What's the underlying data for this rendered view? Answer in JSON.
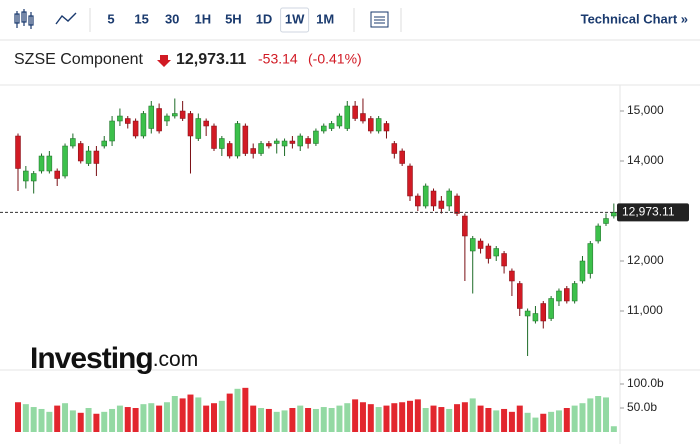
{
  "toolbar": {
    "intervals": [
      "5",
      "15",
      "30",
      "1H",
      "5H",
      "1D",
      "1W",
      "1M"
    ],
    "technical_chart": "Technical Chart »"
  },
  "header": {
    "name": "SZSE Component",
    "change": "-53.14",
    "change_percent": "(-0.41%)"
  },
  "watermark": {
    "brand": "Investing",
    "suffix": ".com"
  },
  "chart_data": {
    "type": "candlestick",
    "up_color": "#3cc04b",
    "down_color": "#d11a24",
    "volume_up_color": "#93d9a3",
    "volume_down_color": "#e2262e",
    "open": [
      14500,
      13600,
      13600,
      13800,
      13800,
      13800,
      13700,
      14300,
      14350,
      13950,
      14200,
      14300,
      14400,
      14800,
      14850,
      14800,
      14500,
      14650,
      15050,
      14800,
      14900,
      15000,
      14950,
      14450,
      14800,
      14700,
      14250,
      14350,
      14100,
      14700,
      14250,
      14150,
      14350,
      14350,
      14300,
      14400,
      14300,
      14450,
      14350,
      14600,
      14650,
      14700,
      14650,
      15100,
      14950,
      14850,
      14600,
      14750,
      14350,
      14200,
      13900,
      13300,
      13100,
      13400,
      13200,
      13100,
      13300,
      12900,
      12200,
      12400,
      12300,
      12100,
      12150,
      11800,
      11550,
      10900,
      10800,
      11150,
      10850,
      11200,
      11450,
      11200,
      11600,
      11750,
      12400,
      12750,
      12900
    ],
    "high": [
      14550,
      13900,
      13800,
      14150,
      14200,
      13850,
      14350,
      14550,
      14400,
      14300,
      14300,
      14500,
      14900,
      15050,
      14900,
      14850,
      15000,
      15200,
      15150,
      14950,
      15250,
      15200,
      15000,
      14950,
      14850,
      14750,
      14500,
      14400,
      14800,
      14750,
      14350,
      14400,
      14400,
      14450,
      14450,
      14500,
      14550,
      14500,
      14650,
      14750,
      14800,
      14950,
      15200,
      15200,
      15250,
      14900,
      14900,
      14800,
      14400,
      14250,
      13950,
      13350,
      13550,
      13450,
      13300,
      13450,
      13350,
      12950,
      12500,
      12450,
      12350,
      12300,
      12200,
      11850,
      11600,
      11050,
      11100,
      11200,
      11300,
      11450,
      11500,
      11600,
      12100,
      12400,
      12750,
      12950,
      13150
    ],
    "low": [
      13400,
      13450,
      13350,
      13750,
      13750,
      13500,
      13650,
      14250,
      13950,
      13900,
      13700,
      14250,
      14300,
      14700,
      14650,
      14450,
      14450,
      14550,
      14550,
      14700,
      14850,
      14800,
      13750,
      14400,
      14500,
      14200,
      14100,
      14050,
      14050,
      14100,
      14050,
      14100,
      14250,
      14150,
      14100,
      14250,
      14200,
      14250,
      14300,
      14550,
      14600,
      14650,
      14600,
      14800,
      14750,
      14550,
      14550,
      14450,
      14050,
      13900,
      13200,
      13000,
      13050,
      13000,
      12950,
      13000,
      12900,
      11600,
      11350,
      12150,
      11950,
      12000,
      11750,
      11300,
      10900,
      10100,
      10750,
      10650,
      10800,
      11100,
      11150,
      11150,
      11550,
      11650,
      12350,
      12700,
      12850
    ],
    "close": [
      13850,
      13800,
      13750,
      14100,
      14100,
      13650,
      14300,
      14450,
      14000,
      14200,
      13950,
      14400,
      14800,
      14900,
      14750,
      14500,
      14950,
      15100,
      14600,
      14900,
      14950,
      14850,
      14500,
      14850,
      14700,
      14250,
      14450,
      14100,
      14750,
      14150,
      14150,
      14350,
      14300,
      14400,
      14400,
      14350,
      14500,
      14350,
      14600,
      14700,
      14750,
      14900,
      15100,
      14850,
      14800,
      14600,
      14850,
      14600,
      14150,
      13950,
      13300,
      13100,
      13500,
      13100,
      13050,
      13400,
      12950,
      12500,
      12450,
      12250,
      12050,
      12250,
      11900,
      11600,
      11050,
      11000,
      10950,
      10800,
      11250,
      11400,
      11200,
      11550,
      12000,
      12350,
      12700,
      12850,
      12973.11
    ],
    "volume": [
      62,
      58,
      52,
      48,
      42,
      55,
      60,
      45,
      40,
      50,
      38,
      42,
      48,
      55,
      52,
      50,
      58,
      60,
      55,
      62,
      75,
      70,
      78,
      72,
      55,
      60,
      65,
      80,
      90,
      92,
      55,
      50,
      48,
      42,
      45,
      50,
      55,
      50,
      48,
      52,
      50,
      55,
      60,
      68,
      62,
      58,
      52,
      55,
      60,
      62,
      65,
      68,
      50,
      55,
      52,
      48,
      58,
      62,
      70,
      55,
      50,
      45,
      48,
      42,
      55,
      40,
      30,
      38,
      42,
      45,
      50,
      55,
      60,
      70,
      75,
      72,
      12
    ],
    "ylim": [
      9900,
      15500
    ],
    "yticks": [
      {
        "value": 11000,
        "label": "11,000"
      },
      {
        "value": 12000,
        "label": "12,000"
      },
      {
        "value": 14000,
        "label": "14,000"
      },
      {
        "value": 15000,
        "label": "15,000"
      }
    ],
    "volume_ylim": [
      0,
      125
    ],
    "volume_ticks": [
      {
        "value": 50,
        "label": "50.0b"
      },
      {
        "value": 100,
        "label": "100.0b"
      }
    ],
    "current_price": {
      "value": 12973.11,
      "label": "12,973.11"
    }
  }
}
